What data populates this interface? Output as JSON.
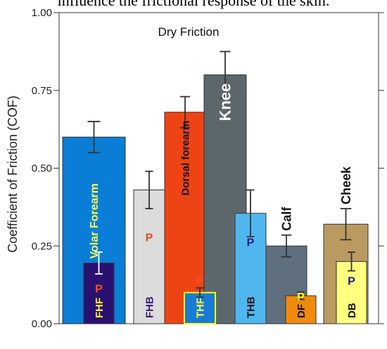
{
  "caption_fragment": "influence the frictional response of the skin.",
  "chart_data": {
    "type": "bar",
    "title": "Dry Friction",
    "ylabel": "Coefficient of Friction (COF)",
    "xlabel": "",
    "ylim": [
      0,
      1
    ],
    "yticks": [
      "0.00",
      "0.25",
      "0.50",
      "0.75",
      "1.00"
    ],
    "ytick_values": [
      0,
      0.25,
      0.5,
      0.75,
      1.0
    ],
    "grid": false,
    "bars": [
      {
        "label": "Volar Forearm",
        "value": 0.6,
        "error": 0.05,
        "color": "#0a7ed6",
        "label_color": "#ffff55",
        "label_pos": "mid",
        "p_marker": ""
      },
      {
        "label": "FHF",
        "value": 0.195,
        "error": 0.035,
        "color": "#2a1070",
        "label_color": "#ffff33",
        "label_pos": "bottom",
        "p_marker": "P",
        "p_color": "#ff4f1f"
      },
      {
        "label": "FHB",
        "value": 0.43,
        "error": 0.06,
        "color": "#dcdcdc",
        "label_color": "#3a1a80",
        "label_pos": "bottom",
        "p_marker": "P",
        "p_color": "#e84a10"
      },
      {
        "label": "Dorsal forearm",
        "value": 0.68,
        "error": 0.05,
        "color": "#ee4414",
        "label_color": "#111111",
        "label_pos": "top",
        "p_marker": ""
      },
      {
        "label": "THF",
        "value": 0.1,
        "error": 0.015,
        "color": "#1a7ad8",
        "label_color": "#ffff44",
        "label_pos": "bottom",
        "p_marker": "P",
        "p_color": "#ff4f1f",
        "border": "#ffff00"
      },
      {
        "label": "Knee",
        "value": 0.8,
        "error": 0.075,
        "color": "#5c676c",
        "label_color": "#ffffff",
        "label_pos": "top",
        "p_marker": ""
      },
      {
        "label": "THB",
        "value": 0.355,
        "error": 0.075,
        "color": "#4fb6ee",
        "label_color": "#111111",
        "label_pos": "bottom",
        "p_marker": "P",
        "p_color": "#1a1a8a"
      },
      {
        "label": "Calf",
        "value": 0.25,
        "error": 0.035,
        "color": "#5f6f80",
        "label_color": "#111111",
        "label_pos": "above",
        "p_marker": ""
      },
      {
        "label": "DF",
        "value": 0.09,
        "error": 0.012,
        "color": "#f08a0c",
        "label_color": "#111111",
        "label_pos": "bottom",
        "p_marker": "P",
        "p_color": "#ffff00"
      },
      {
        "label": "Cheek",
        "value": 0.32,
        "error": 0.05,
        "color": "#bb9a62",
        "label_color": "#111111",
        "label_pos": "above",
        "p_marker": ""
      },
      {
        "label": "DB",
        "value": 0.2,
        "error": 0.03,
        "color": "#ffff80",
        "label_color": "#111111",
        "label_pos": "bottom",
        "p_marker": "P",
        "p_color": "#1a1a8a"
      }
    ]
  }
}
